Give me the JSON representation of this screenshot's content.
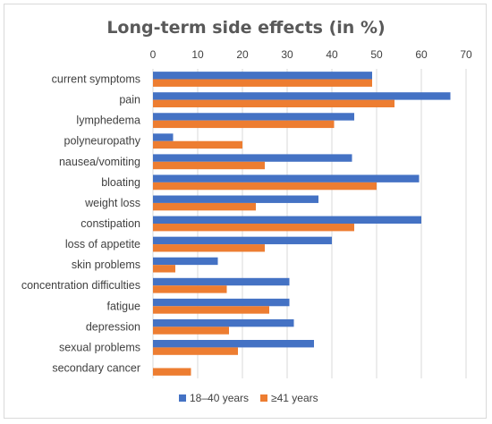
{
  "chart_data": {
    "type": "bar",
    "orientation": "horizontal",
    "title": "Long-term side effects (in %)",
    "xlabel": "",
    "ylabel": "",
    "xlim": [
      0,
      70
    ],
    "xticks": [
      "0",
      "10",
      "20",
      "30",
      "40",
      "50",
      "60",
      "70"
    ],
    "x_axis_position": "top",
    "grid": true,
    "legend_position": "bottom",
    "categories": [
      "current symptoms",
      "pain",
      "lymphedema",
      "polyneuropathy",
      "nausea/vomiting",
      "bloating",
      "weight loss",
      "constipation",
      "loss of appetite",
      "skin problems",
      "concentration difficulties",
      "fatigue",
      "depression",
      "sexual problems",
      "secondary cancer"
    ],
    "series": [
      {
        "name": "18–40 years",
        "color": "#4472c4",
        "values": [
          49,
          66.5,
          45,
          4.5,
          44.5,
          59.5,
          37,
          60,
          40,
          14.5,
          30.5,
          30.5,
          31.5,
          36,
          0
        ]
      },
      {
        "name": "≥41 years",
        "color": "#ed7d31",
        "values": [
          49,
          54,
          40.5,
          20,
          25,
          50,
          23,
          45,
          25,
          5,
          16.5,
          26,
          17,
          19,
          8.5
        ]
      }
    ]
  }
}
